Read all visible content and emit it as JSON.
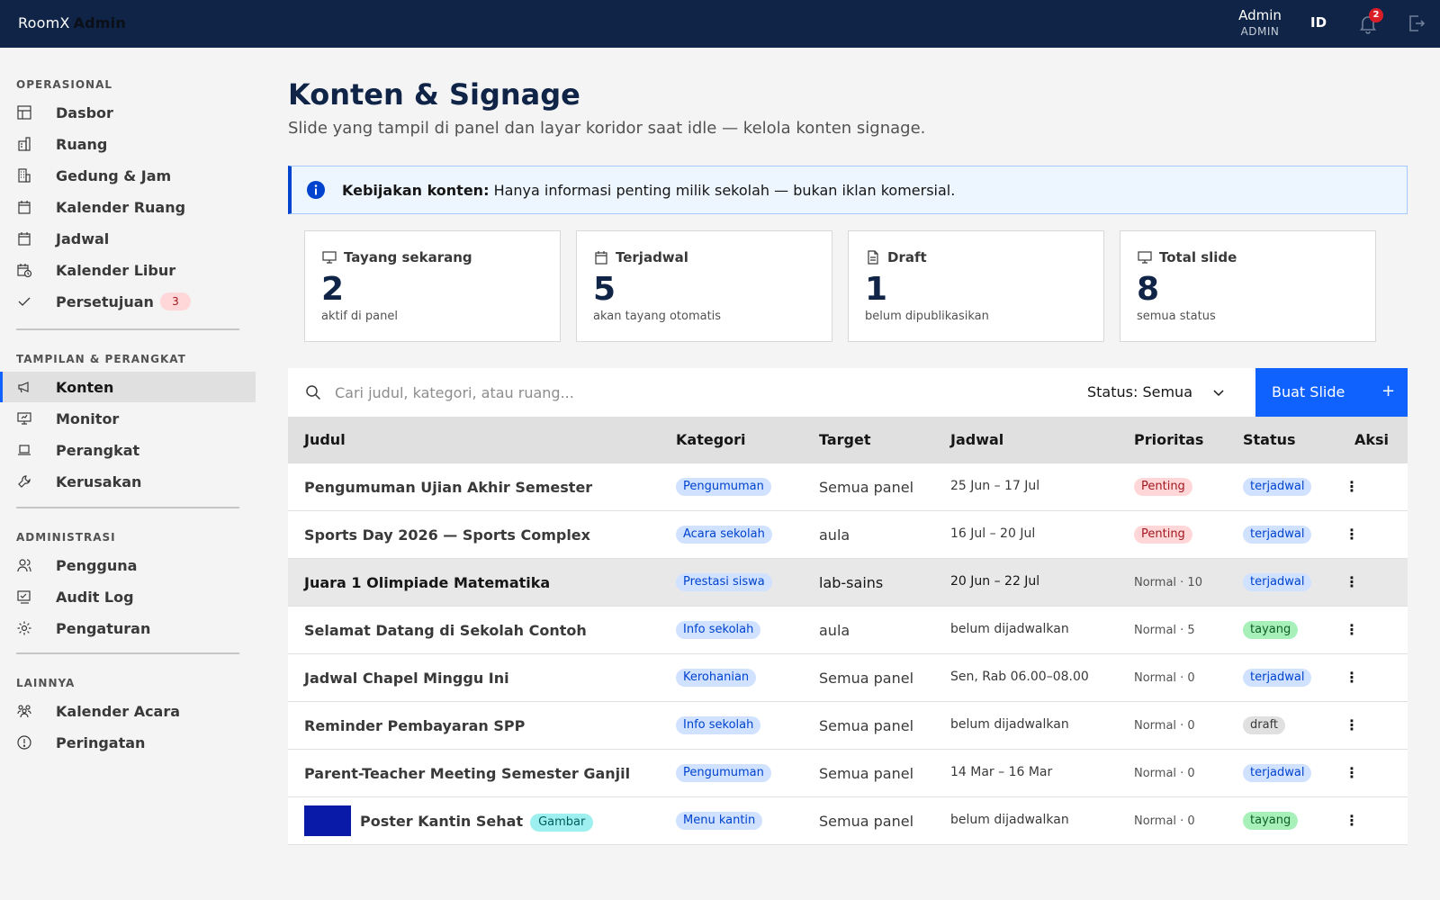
{
  "header": {
    "brand_part1": "RoomX",
    "brand_part2": "Admin",
    "user_name": "Admin",
    "user_role": "ADMIN",
    "language": "ID",
    "notification_count": "2",
    "icons": [
      "bell-icon",
      "logout-icon"
    ]
  },
  "sidebar": {
    "sections": [
      {
        "title": "OPERASIONAL"
      },
      {
        "title": "TAMPILAN & PERANGKAT"
      },
      {
        "title": "ADMINISTRASI"
      },
      {
        "title": "LAINNYA"
      }
    ],
    "items": [
      {
        "label": "Dasbor",
        "icon": "dashboard-icon"
      },
      {
        "label": "Ruang",
        "icon": "building-icon"
      },
      {
        "label": "Gedung & Jam",
        "icon": "building-clock-icon"
      },
      {
        "label": "Kalender Ruang",
        "icon": "calendar-icon"
      },
      {
        "label": "Jadwal",
        "icon": "calendar-icon"
      },
      {
        "label": "Kalender Libur",
        "icon": "calendar-holiday-icon"
      },
      {
        "label": "Persetujuan",
        "icon": "check-icon",
        "badge": "3"
      },
      {
        "label": "Konten",
        "icon": "megaphone-icon",
        "active": true
      },
      {
        "label": "Monitor",
        "icon": "monitor-icon"
      },
      {
        "label": "Perangkat",
        "icon": "laptop-icon"
      },
      {
        "label": "Kerusakan",
        "icon": "wrench-icon"
      },
      {
        "label": "Pengguna",
        "icon": "users-icon"
      },
      {
        "label": "Audit Log",
        "icon": "audit-icon"
      },
      {
        "label": "Pengaturan",
        "icon": "gear-icon"
      },
      {
        "label": "Kalender Acara",
        "icon": "people-icon"
      },
      {
        "label": "Peringatan",
        "icon": "warning-icon"
      }
    ]
  },
  "main": {
    "title": "Konten & Signage",
    "subtitle": "Slide yang tampil di panel dan layar koridor saat idle — kelola konten signage.",
    "notice": {
      "bold": "Kebijakan konten:",
      "text": "Hanya informasi penting milik sekolah — bukan iklan komersial.",
      "icon": "info-icon"
    },
    "stats": [
      {
        "label": "Tayang sekarang",
        "value": "2",
        "sub": "aktif di panel",
        "icon": "monitor-icon"
      },
      {
        "label": "Terjadwal",
        "value": "5",
        "sub": "akan tayang otomatis",
        "icon": "calendar-icon"
      },
      {
        "label": "Draft",
        "value": "1",
        "sub": "belum dipublikasikan",
        "icon": "document-icon"
      },
      {
        "label": "Total slide",
        "value": "8",
        "sub": "semua status",
        "icon": "monitor-icon"
      }
    ],
    "search": {
      "placeholder": "Cari judul, kategori, atau ruang...",
      "value": ""
    },
    "status_filter": "Status: Semua",
    "create_button": "Buat Slide",
    "create_button_icon": "+",
    "table": {
      "headers": [
        "Judul",
        "Kategori",
        "Target",
        "Jadwal",
        "Prioritas",
        "Status",
        "Aksi"
      ],
      "rows": [
        {
          "title": "Pengumuman Ujian Akhir Semester",
          "category": "Pengumuman",
          "target": "Semua panel",
          "schedule": "25 Jun – 17 Jul",
          "priority": "Penting",
          "priority_tag": true,
          "status": "terjadwal"
        },
        {
          "title": "Sports Day 2026 — Sports Complex",
          "category": "Acara sekolah",
          "target": "aula",
          "schedule": "16 Jul – 20 Jul",
          "priority": "Penting",
          "priority_tag": true,
          "status": "terjadwal"
        },
        {
          "title": "Juara 1 Olimpiade Matematika",
          "category": "Prestasi siswa",
          "target": "lab-sains",
          "schedule": "20 Jun – 22 Jul",
          "priority": "Normal · 10",
          "priority_tag": false,
          "status": "terjadwal",
          "highlighted": true
        },
        {
          "title": "Selamat Datang di Sekolah Contoh",
          "category": "Info sekolah",
          "target": "aula",
          "schedule": "belum dijadwalkan",
          "priority": "Normal · 5",
          "priority_tag": false,
          "status": "tayang"
        },
        {
          "title": "Jadwal Chapel Minggu Ini",
          "category": "Kerohanian",
          "target": "Semua panel",
          "schedule": "Sen, Rab 06.00–08.00",
          "priority": "Normal · 0",
          "priority_tag": false,
          "status": "terjadwal"
        },
        {
          "title": "Reminder Pembayaran SPP",
          "category": "Info sekolah",
          "target": "Semua panel",
          "schedule": "belum dijadwalkan",
          "priority": "Normal · 0",
          "priority_tag": false,
          "status": "draft"
        },
        {
          "title": "Parent-Teacher Meeting Semester Ganjil",
          "category": "Pengumuman",
          "target": "Semua panel",
          "schedule": "14 Mar – 16 Mar",
          "priority": "Normal · 0",
          "priority_tag": false,
          "status": "terjadwal"
        },
        {
          "title": "Poster Kantin Sehat",
          "title_tag": "Gambar",
          "thumbnail_color": "#0a1aa8",
          "category": "Menu kantin",
          "target": "Semua panel",
          "schedule": "belum dijadwalkan",
          "priority": "Normal · 0",
          "priority_tag": false,
          "status": "tayang"
        }
      ]
    }
  },
  "colors": {
    "header_bg": "#0f2446",
    "primary": "#0f62fe",
    "tag_blue": "#d0e2ff",
    "tag_red": "#ffd7d9",
    "tag_green": "#a7f0ba"
  }
}
